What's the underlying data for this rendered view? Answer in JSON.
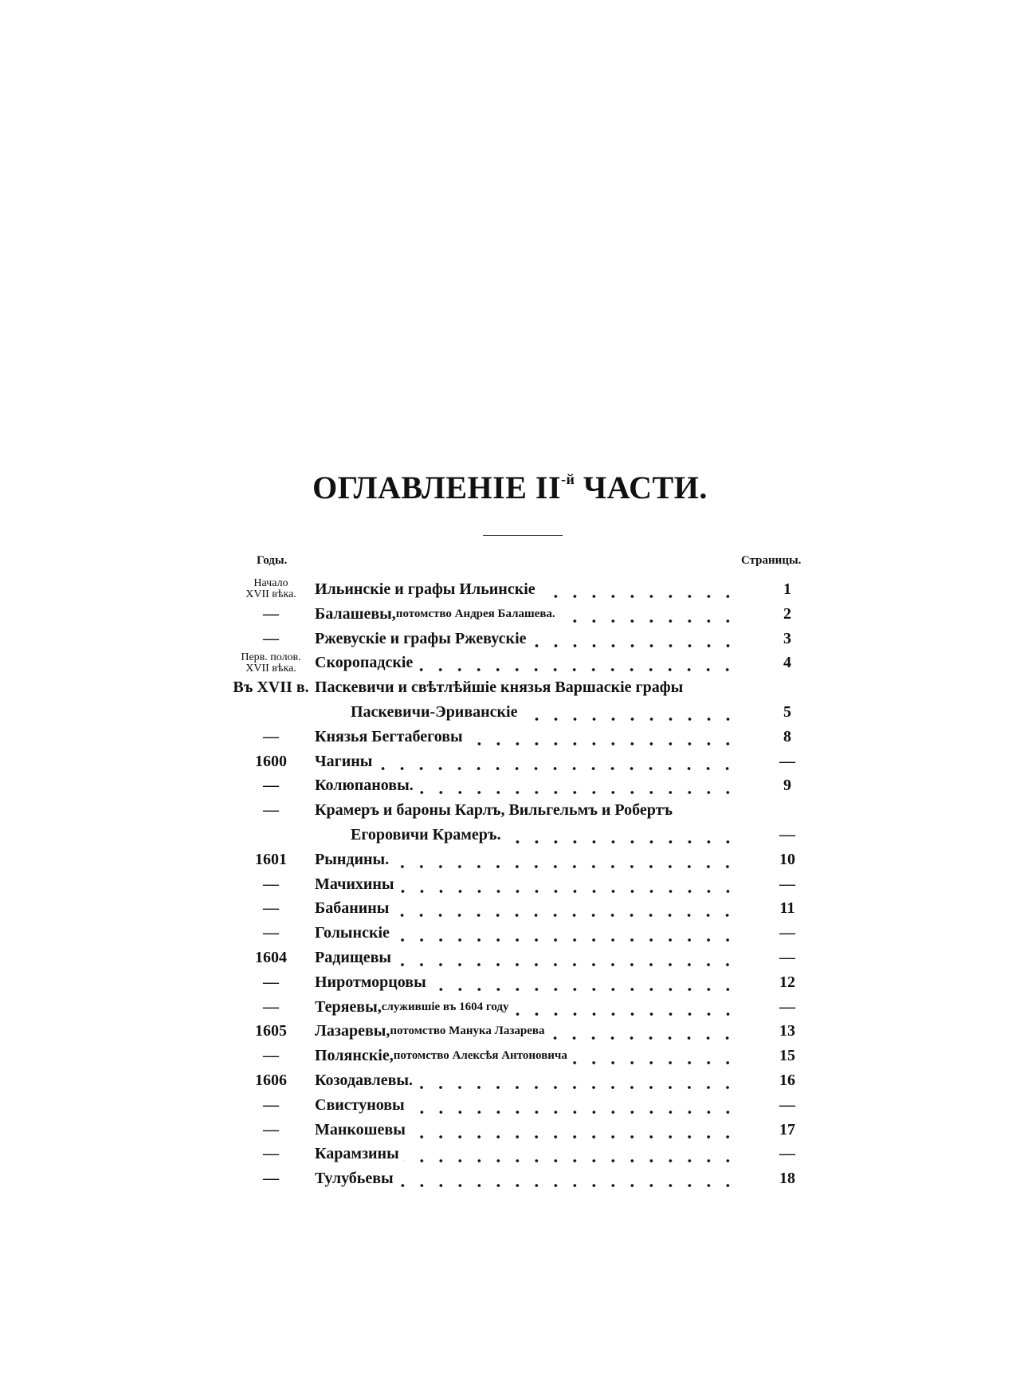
{
  "title": {
    "main": "ОГЛАВЛЕНІЕ II",
    "sup": "-й",
    "rest": " ЧАСТИ."
  },
  "headers": {
    "years": "Годы.",
    "pages": "Страницы."
  },
  "entries": [
    {
      "year": [
        "Начало",
        "XVII вѣка."
      ],
      "title": "Ильинскіе и графы Ильинскіе",
      "page": "1"
    },
    {
      "year": [
        "—"
      ],
      "title": "Балашевы,",
      "note": " потомство Андрея Балашева.",
      "page": "2"
    },
    {
      "year": [
        "—"
      ],
      "title": "Ржевускіе и графы Ржевускіе",
      "page": "3"
    },
    {
      "year": [
        "Перв. полов.",
        "XVII вѣка."
      ],
      "title": "Скоропадскіе",
      "page": "4"
    },
    {
      "year": [
        "Въ XVII в."
      ],
      "title": "Паскевичи и свѣтлѣйшіе князья Варшаскіе графы",
      "continuation": "Паскевичи-Эриванскіе",
      "page": "5"
    },
    {
      "year": [
        "—"
      ],
      "title": "Князья Бегтабеговы",
      "page": "8"
    },
    {
      "year": [
        "1600"
      ],
      "title": "Чагины",
      "page": "—"
    },
    {
      "year": [
        "—"
      ],
      "title": "Колюпановы.",
      "page": "9"
    },
    {
      "year": [
        "—"
      ],
      "title": "Крамеръ и бароны Карлъ, Вильгельмъ и Робертъ",
      "continuation": "Егоровичи Крамеръ.",
      "page": "—"
    },
    {
      "year": [
        "1601"
      ],
      "title": "Рындины.",
      "page": "10"
    },
    {
      "year": [
        "—"
      ],
      "title": "Мачихины",
      "page": "—"
    },
    {
      "year": [
        "—"
      ],
      "title": "Бабанины",
      "page": "11"
    },
    {
      "year": [
        "—"
      ],
      "title": "Голынскіе",
      "page": "—"
    },
    {
      "year": [
        "1604"
      ],
      "title": "Радищевы",
      "page": "—"
    },
    {
      "year": [
        "—"
      ],
      "title": "Ниротморцовы",
      "page": "12"
    },
    {
      "year": [
        "—"
      ],
      "title": "Теряевы,",
      "note": " служившіе въ 1604 году",
      "page": "—"
    },
    {
      "year": [
        "1605"
      ],
      "title": "Лазаревы,",
      "note": " потомство Манука Лазарева",
      "page": "13"
    },
    {
      "year": [
        "—"
      ],
      "title": "Полянскіе,",
      "note": " потомство Алексѣя Антоновича",
      "page": "15"
    },
    {
      "year": [
        "1606"
      ],
      "title": "Козодавлевы.",
      "page": "16"
    },
    {
      "year": [
        "—"
      ],
      "title": "Свистуновы",
      "page": "—"
    },
    {
      "year": [
        "—"
      ],
      "title": "Манкошевы",
      "page": "17"
    },
    {
      "year": [
        "—"
      ],
      "title": "Карамзины",
      "page": "—"
    },
    {
      "year": [
        "—"
      ],
      "title": "Тулубьевы",
      "page": "18"
    }
  ]
}
